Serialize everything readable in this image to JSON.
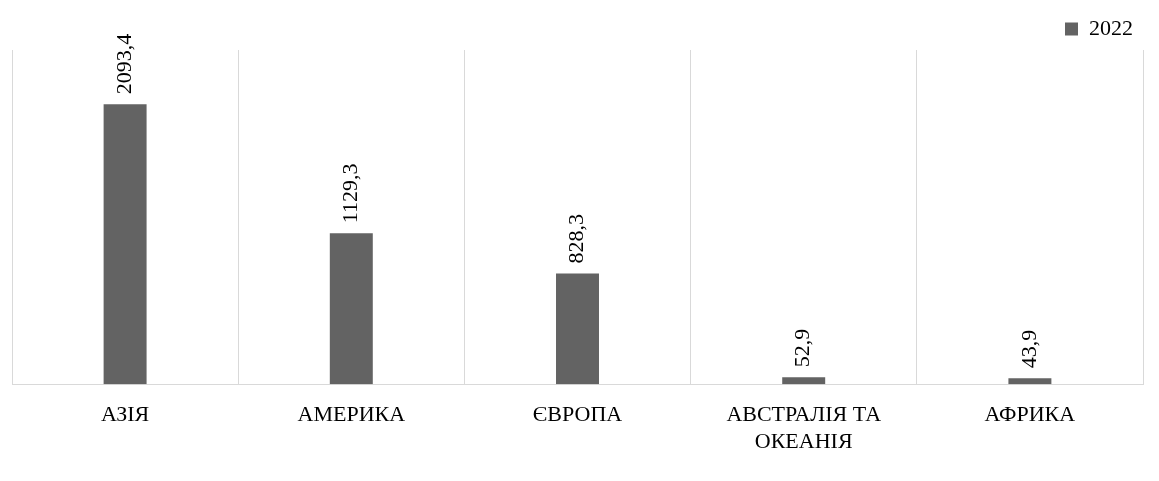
{
  "chart_data": {
    "type": "bar",
    "categories": [
      "АЗІЯ",
      "АМЕРИКА",
      "ЄВРОПА",
      "АВСТРАЛІЯ ТА ОКЕАНІЯ",
      "АФРИКА"
    ],
    "series": [
      {
        "name": "2022",
        "color": "#636363",
        "values": [
          2093.4,
          1129.3,
          828.3,
          52.9,
          43.9
        ],
        "value_labels": [
          "2093,4",
          "1129,3",
          "828,3",
          "52,9",
          "43,9"
        ]
      }
    ],
    "grid": "x",
    "legend": "top right"
  }
}
